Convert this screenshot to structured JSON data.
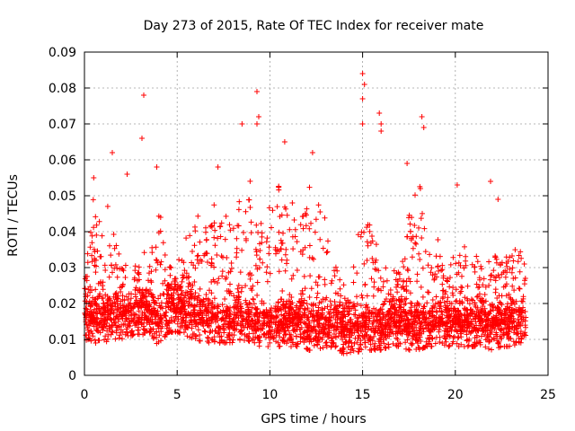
{
  "chart_data": {
    "type": "scatter",
    "title": "Day 273 of 2015, Rate Of TEC Index for receiver mate",
    "xlabel": "GPS time / hours",
    "ylabel": "ROTI / TECUs",
    "xlim": [
      0,
      25
    ],
    "ylim": [
      0,
      0.09
    ],
    "xticks": [
      0,
      5,
      10,
      15,
      20,
      25
    ],
    "yticks": [
      0,
      0.01,
      0.02,
      0.03,
      0.04,
      0.05,
      0.06,
      0.07,
      0.08,
      0.09
    ],
    "xtick_labels": [
      "0",
      "5",
      "10",
      "15",
      "20",
      "25"
    ],
    "ytick_labels": [
      "0",
      "0.01",
      "0.02",
      "0.03",
      "0.04",
      "0.05",
      "0.06",
      "0.07",
      "0.08",
      "0.09"
    ],
    "grid": true,
    "marker": "plus",
    "color": "#ff0000",
    "x_range_data": [
      0,
      23.8
    ],
    "envelope": {
      "hours": [
        0,
        0.5,
        1,
        1.5,
        2,
        2.5,
        3,
        3.5,
        4,
        4.5,
        5,
        5.5,
        6,
        6.5,
        7,
        7.5,
        8,
        8.5,
        9,
        9.5,
        10,
        10.5,
        11,
        11.5,
        12,
        12.5,
        13,
        13.5,
        14,
        14.5,
        15,
        15.5,
        16,
        16.5,
        17,
        17.5,
        18,
        18.5,
        19,
        19.5,
        20,
        20.5,
        21,
        21.5,
        22,
        22.5,
        23,
        23.5,
        23.8
      ],
      "typical_low": [
        0.01,
        0.009,
        0.009,
        0.01,
        0.01,
        0.011,
        0.011,
        0.012,
        0.008,
        0.012,
        0.012,
        0.011,
        0.01,
        0.009,
        0.009,
        0.009,
        0.009,
        0.01,
        0.009,
        0.008,
        0.008,
        0.008,
        0.008,
        0.008,
        0.007,
        0.007,
        0.008,
        0.007,
        0.006,
        0.006,
        0.007,
        0.007,
        0.007,
        0.008,
        0.008,
        0.007,
        0.007,
        0.008,
        0.008,
        0.008,
        0.008,
        0.008,
        0.008,
        0.008,
        0.007,
        0.008,
        0.008,
        0.009,
        0.009
      ],
      "typical_high": [
        0.028,
        0.045,
        0.04,
        0.045,
        0.035,
        0.028,
        0.033,
        0.03,
        0.045,
        0.028,
        0.03,
        0.04,
        0.042,
        0.04,
        0.045,
        0.04,
        0.04,
        0.045,
        0.05,
        0.045,
        0.045,
        0.05,
        0.045,
        0.04,
        0.048,
        0.045,
        0.04,
        0.03,
        0.03,
        0.03,
        0.045,
        0.04,
        0.03,
        0.025,
        0.035,
        0.045,
        0.05,
        0.04,
        0.035,
        0.03,
        0.035,
        0.033,
        0.035,
        0.03,
        0.035,
        0.035,
        0.035,
        0.035,
        0.03
      ]
    },
    "notable_points": [
      {
        "x": 3.2,
        "y": 0.078
      },
      {
        "x": 3.1,
        "y": 0.066
      },
      {
        "x": 9.3,
        "y": 0.079
      },
      {
        "x": 9.4,
        "y": 0.072
      },
      {
        "x": 9.3,
        "y": 0.07
      },
      {
        "x": 8.5,
        "y": 0.07
      },
      {
        "x": 10.8,
        "y": 0.065
      },
      {
        "x": 15.0,
        "y": 0.084
      },
      {
        "x": 15.1,
        "y": 0.081
      },
      {
        "x": 15.0,
        "y": 0.077
      },
      {
        "x": 15.0,
        "y": 0.07
      },
      {
        "x": 15.9,
        "y": 0.073
      },
      {
        "x": 16.0,
        "y": 0.07
      },
      {
        "x": 16.0,
        "y": 0.068
      },
      {
        "x": 18.2,
        "y": 0.072
      },
      {
        "x": 18.3,
        "y": 0.069
      },
      {
        "x": 12.3,
        "y": 0.062
      },
      {
        "x": 1.5,
        "y": 0.062
      },
      {
        "x": 7.2,
        "y": 0.058
      },
      {
        "x": 3.9,
        "y": 0.058
      },
      {
        "x": 17.4,
        "y": 0.059
      },
      {
        "x": 20.1,
        "y": 0.053
      },
      {
        "x": 21.9,
        "y": 0.054
      },
      {
        "x": 22.3,
        "y": 0.049
      },
      {
        "x": 0.5,
        "y": 0.055
      },
      {
        "x": 2.3,
        "y": 0.056
      }
    ]
  }
}
